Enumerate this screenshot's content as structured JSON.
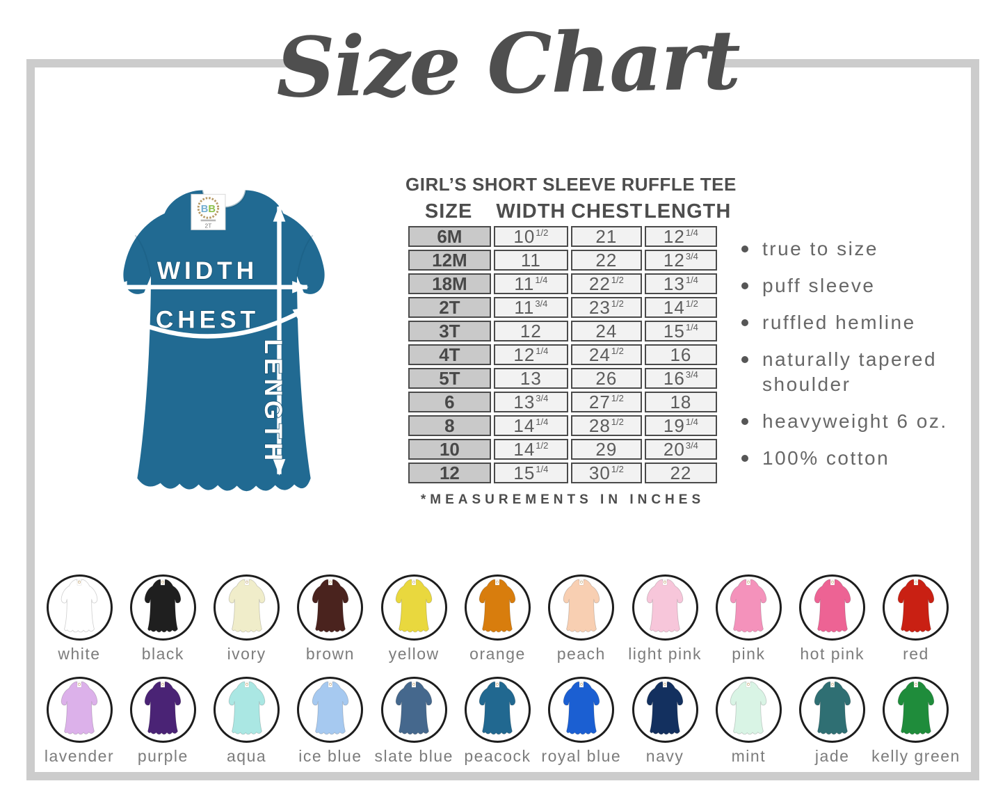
{
  "title": "Size Chart",
  "product": {
    "table_title": "GIRL’S SHORT SLEEVE RUFFLE TEE",
    "columns": [
      "SIZE",
      "WIDTH",
      "CHEST",
      "LENGTH"
    ],
    "rows": [
      {
        "size": "6M",
        "width": "10 1/2",
        "chest": "21",
        "length": "12 1/4"
      },
      {
        "size": "12M",
        "width": "11",
        "chest": "22",
        "length": "12 3/4"
      },
      {
        "size": "18M",
        "width": "11 1/4",
        "chest": "22 1/2",
        "length": "13 1/4"
      },
      {
        "size": "2T",
        "width": "11 3/4",
        "chest": "23 1/2",
        "length": "14 1/2"
      },
      {
        "size": "3T",
        "width": "12",
        "chest": "24",
        "length": "15 1/4"
      },
      {
        "size": "4T",
        "width": "12 1/4",
        "chest": "24 1/2",
        "length": "16"
      },
      {
        "size": "5T",
        "width": "13",
        "chest": "26",
        "length": "16 3/4"
      },
      {
        "size": "6",
        "width": "13 3/4",
        "chest": "27 1/2",
        "length": "18"
      },
      {
        "size": "8",
        "width": "14 1/4",
        "chest": "28 1/2",
        "length": "19 1/4"
      },
      {
        "size": "10",
        "width": "14 1/2",
        "chest": "29",
        "length": "20 3/4"
      },
      {
        "size": "12",
        "width": "15 1/4",
        "chest": "30 1/2",
        "length": "22"
      }
    ],
    "footnote": "*MEASUREMENTS IN INCHES"
  },
  "features": [
    "true to size",
    "puff sleeve",
    "ruffled hemline",
    "naturally tapered shoulder",
    "heavyweight 6 oz.",
    "100% cotton"
  ],
  "diagram": {
    "width_label": "WIDTH",
    "chest_label": "CHEST",
    "length_label": "LENGTH",
    "tag_brand_b1": "B",
    "tag_brand_b2": "B",
    "tag_size": "2T",
    "shirt_color": "#216a92"
  },
  "swatches": {
    "row1": [
      {
        "name": "white",
        "color": "#ffffff"
      },
      {
        "name": "black",
        "color": "#1f1f1f"
      },
      {
        "name": "ivory",
        "color": "#f0edca"
      },
      {
        "name": "brown",
        "color": "#4a231e"
      },
      {
        "name": "yellow",
        "color": "#e9d83e"
      },
      {
        "name": "orange",
        "color": "#d87d0d"
      },
      {
        "name": "peach",
        "color": "#f8cfb2"
      },
      {
        "name": "light pink",
        "color": "#f7c6da"
      },
      {
        "name": "pink",
        "color": "#f492bb"
      },
      {
        "name": "hot pink",
        "color": "#ed6394"
      },
      {
        "name": "red",
        "color": "#c92013"
      }
    ],
    "row2": [
      {
        "name": "lavender",
        "color": "#dcb1ea"
      },
      {
        "name": "purple",
        "color": "#4a2375"
      },
      {
        "name": "aqua",
        "color": "#aae7e3"
      },
      {
        "name": "ice blue",
        "color": "#a6c9f0"
      },
      {
        "name": "slate blue",
        "color": "#45688d"
      },
      {
        "name": "peacock",
        "color": "#216890"
      },
      {
        "name": "royal blue",
        "color": "#1b5fd2"
      },
      {
        "name": "navy",
        "color": "#13305f"
      },
      {
        "name": "mint",
        "color": "#d9f4e5"
      },
      {
        "name": "jade",
        "color": "#2f6f73"
      },
      {
        "name": "kelly green",
        "color": "#1f8c3b"
      }
    ]
  },
  "colors": {
    "frame_gray": "#cccccc",
    "text_dark": "#4d4d4d",
    "text_mid": "#676767"
  }
}
